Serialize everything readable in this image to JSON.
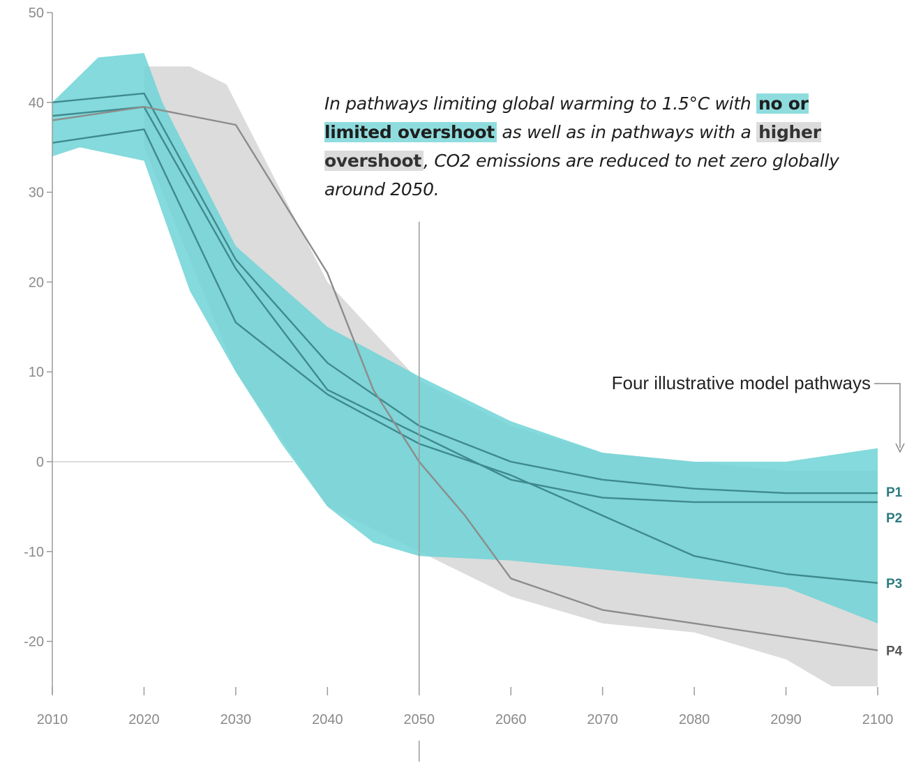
{
  "colors": {
    "teal_band": "#6fd3d6",
    "grey_band": "#dcdcdc",
    "teal_line": "#3f8a8e",
    "grey_line": "#8c8c8c",
    "axis": "#9a9a9a",
    "label_teal": "#2b7b80",
    "label_grey": "#555555"
  },
  "annotation": {
    "part1": "In pathways limiting global warming to 1.5°C with ",
    "highlight1": "no or limited overshoot",
    "part2": " as well as in pathways with a ",
    "highlight2": "higher overshoot",
    "part3": ", CO2 emissions are reduced to net zero globally around 2050."
  },
  "legend_note": "Four illustrative model pathways",
  "chart_data": {
    "type": "area",
    "xlim": [
      2010,
      2100
    ],
    "ylim": [
      -25,
      50
    ],
    "x_ticks": [
      "2010",
      "2020",
      "2030",
      "2040",
      "2050",
      "2060",
      "2070",
      "2080",
      "2090",
      "2100"
    ],
    "y_ticks": [
      "50",
      "40",
      "30",
      "20",
      "10",
      "0",
      "-10",
      "-20"
    ],
    "grid": false,
    "vertical_marker": 2050,
    "bands": [
      {
        "color": "grey",
        "upper": [
          [
            2020,
            44
          ],
          [
            2025,
            44
          ],
          [
            2029,
            42
          ],
          [
            2031,
            38
          ],
          [
            2040,
            20
          ],
          [
            2050,
            9
          ],
          [
            2060,
            4
          ],
          [
            2070,
            1
          ],
          [
            2080,
            0
          ],
          [
            2090,
            -1
          ],
          [
            2100,
            -1
          ]
        ],
        "lower": [
          [
            2020,
            35
          ],
          [
            2030,
            10
          ],
          [
            2040,
            -5
          ],
          [
            2050,
            -10
          ],
          [
            2060,
            -15
          ],
          [
            2070,
            -18
          ],
          [
            2080,
            -19
          ],
          [
            2090,
            -22
          ],
          [
            2095,
            -25
          ],
          [
            2100,
            -25
          ]
        ]
      },
      {
        "color": "teal",
        "upper": [
          [
            2010,
            40
          ],
          [
            2015,
            45
          ],
          [
            2020,
            45.5
          ],
          [
            2022,
            40
          ],
          [
            2030,
            24
          ],
          [
            2040,
            15
          ],
          [
            2050,
            9.5
          ],
          [
            2060,
            4.5
          ],
          [
            2070,
            1
          ],
          [
            2080,
            0
          ],
          [
            2090,
            0
          ],
          [
            2100,
            1.5
          ]
        ],
        "lower": [
          [
            2010,
            34
          ],
          [
            2013,
            35
          ],
          [
            2020,
            33.5
          ],
          [
            2025,
            19
          ],
          [
            2030,
            10
          ],
          [
            2035,
            2
          ],
          [
            2040,
            -5
          ],
          [
            2045,
            -9
          ],
          [
            2050,
            -10.5
          ],
          [
            2060,
            -11
          ],
          [
            2070,
            -12
          ],
          [
            2080,
            -13
          ],
          [
            2090,
            -14
          ],
          [
            2100,
            -18
          ]
        ]
      }
    ],
    "series": [
      {
        "name": "P1",
        "color": "teal",
        "points": [
          [
            2010,
            40
          ],
          [
            2020,
            41
          ],
          [
            2030,
            22.5
          ],
          [
            2040,
            11
          ],
          [
            2050,
            4
          ],
          [
            2060,
            0
          ],
          [
            2070,
            -2
          ],
          [
            2080,
            -3
          ],
          [
            2090,
            -3.5
          ],
          [
            2100,
            -3.5
          ]
        ]
      },
      {
        "name": "P2",
        "color": "teal",
        "points": [
          [
            2010,
            38.5
          ],
          [
            2020,
            39.5
          ],
          [
            2030,
            21.5
          ],
          [
            2040,
            8
          ],
          [
            2050,
            3
          ],
          [
            2060,
            -2
          ],
          [
            2070,
            -4
          ],
          [
            2080,
            -4.5
          ],
          [
            2090,
            -4.5
          ],
          [
            2100,
            -4.5
          ]
        ]
      },
      {
        "name": "P3",
        "color": "teal",
        "points": [
          [
            2010,
            35.5
          ],
          [
            2020,
            37
          ],
          [
            2030,
            15.5
          ],
          [
            2040,
            7.5
          ],
          [
            2050,
            2
          ],
          [
            2060,
            -1.5
          ],
          [
            2070,
            -6
          ],
          [
            2080,
            -10.5
          ],
          [
            2090,
            -12.5
          ],
          [
            2100,
            -13.5
          ]
        ]
      },
      {
        "name": "P4",
        "color": "grey",
        "points": [
          [
            2010,
            38
          ],
          [
            2020,
            39.5
          ],
          [
            2030,
            37.5
          ],
          [
            2040,
            21
          ],
          [
            2045,
            8
          ],
          [
            2050,
            0
          ],
          [
            2055,
            -6
          ],
          [
            2060,
            -13
          ],
          [
            2070,
            -16.5
          ],
          [
            2080,
            -18
          ],
          [
            2090,
            -19.5
          ],
          [
            2100,
            -21
          ]
        ]
      }
    ]
  }
}
